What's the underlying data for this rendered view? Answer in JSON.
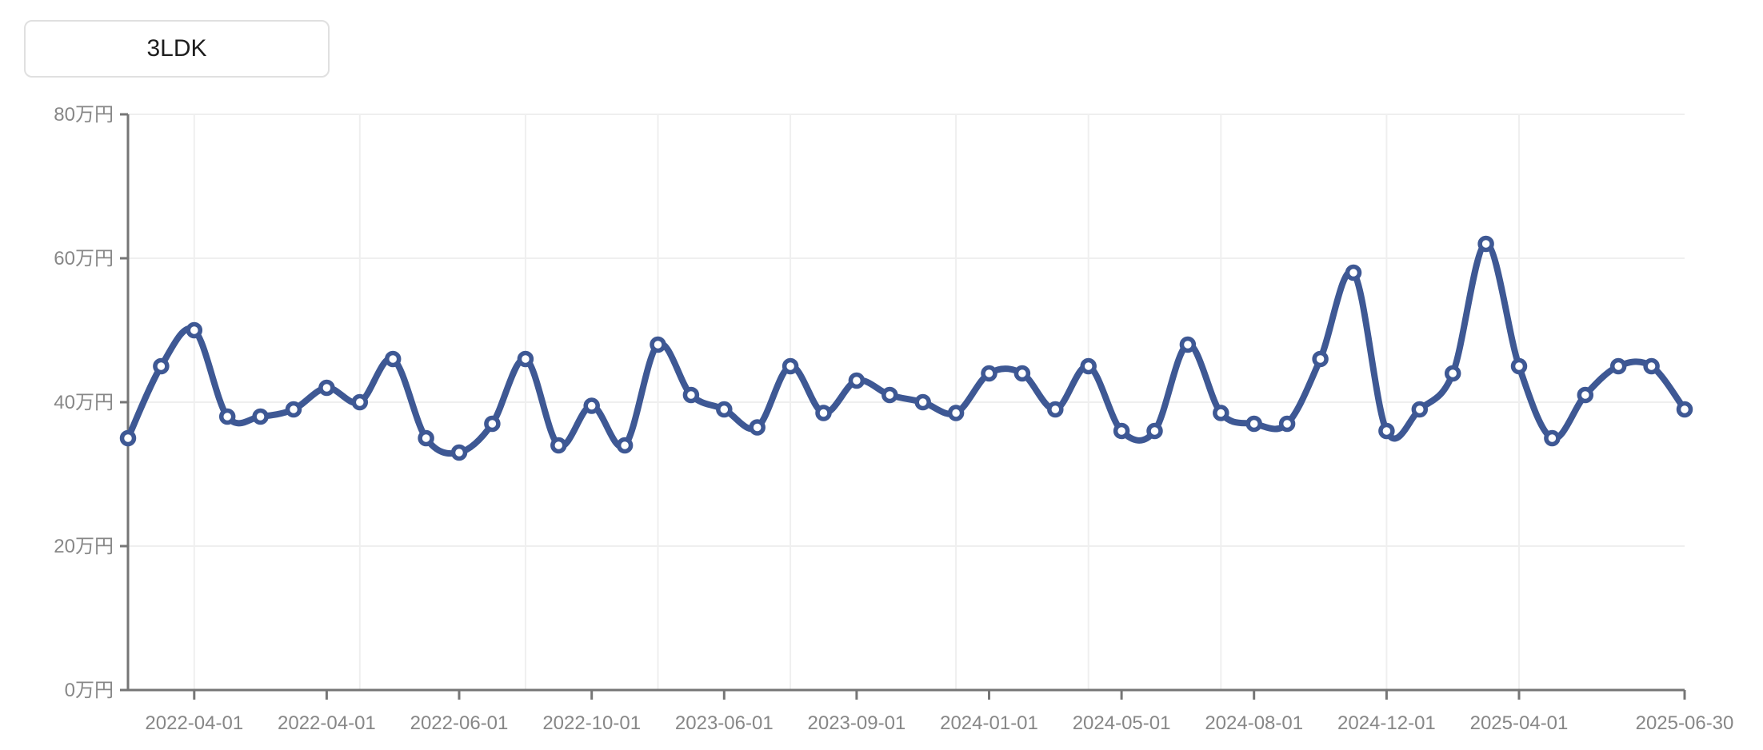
{
  "filter": {
    "label": "3LDK"
  },
  "chart_data": {
    "type": "line",
    "title": "",
    "xlabel": "",
    "ylabel": "万円",
    "ylim": [
      0,
      80
    ],
    "grid": true,
    "legend_position": "none",
    "y_ticks": [
      {
        "value": 0,
        "label": "0万円"
      },
      {
        "value": 20,
        "label": "20万円"
      },
      {
        "value": 40,
        "label": "40万円"
      },
      {
        "value": 60,
        "label": "60万円"
      },
      {
        "value": 80,
        "label": "80万円"
      }
    ],
    "x_tick_labels": [
      "2022-04-01",
      "2022-04-01",
      "2022-06-01",
      "2022-10-01",
      "2023-06-01",
      "2023-09-01",
      "2024-01-01",
      "2024-05-01",
      "2024-08-01",
      "2024-12-01",
      "2025-04-01",
      "2025-06-30"
    ],
    "x_tick_indices": [
      2,
      6,
      10,
      14,
      18,
      22,
      26,
      30,
      34,
      38,
      42,
      47
    ],
    "x_grid_indices": [
      2,
      7,
      12,
      16,
      20,
      25,
      29,
      33,
      38,
      42
    ],
    "series": [
      {
        "name": "3LDK",
        "values": [
          35,
          45,
          50,
          38,
          38,
          39,
          42,
          40,
          46,
          35,
          33,
          37,
          46,
          34,
          39.5,
          34,
          48,
          41,
          39,
          36.5,
          45,
          38.5,
          43,
          41,
          40,
          38.5,
          44,
          44,
          39,
          45,
          36,
          36,
          48,
          38.5,
          37,
          37,
          46,
          58,
          36,
          39,
          44,
          62,
          45,
          35,
          41,
          45,
          45,
          39
        ]
      }
    ],
    "style": {
      "line_color": "#3E5894",
      "marker": "hollow-circle",
      "marker_fill": "#ffffff",
      "axis_color": "#767676",
      "label_color": "#878787",
      "grid_color": "#efefef",
      "background": "#ffffff"
    }
  }
}
